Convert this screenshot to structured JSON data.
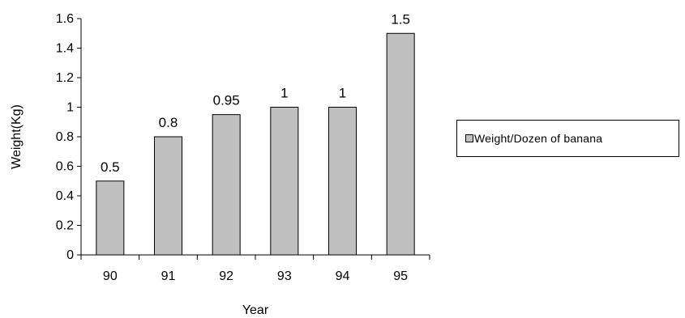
{
  "chart_data": {
    "type": "bar",
    "categories": [
      "90",
      "91",
      "92",
      "93",
      "94",
      "95"
    ],
    "series": [
      {
        "name": "Weight/Dozen of banana",
        "values": [
          0.5,
          0.8,
          0.95,
          1,
          1,
          1.5
        ],
        "labels": [
          "0.5",
          "0.8",
          "0.95",
          "1",
          "1",
          "1.5"
        ]
      }
    ],
    "xlabel": "Year",
    "ylabel": "Weight(Kg)",
    "ylim": [
      0,
      1.6
    ],
    "yticks": [
      "0",
      "0.2",
      "0.4",
      "0.6",
      "0.8",
      "1",
      "1.2",
      "1.4",
      "1.6"
    ],
    "legend_position": "right",
    "grid": false,
    "bar_color": "#c0c0c0"
  }
}
